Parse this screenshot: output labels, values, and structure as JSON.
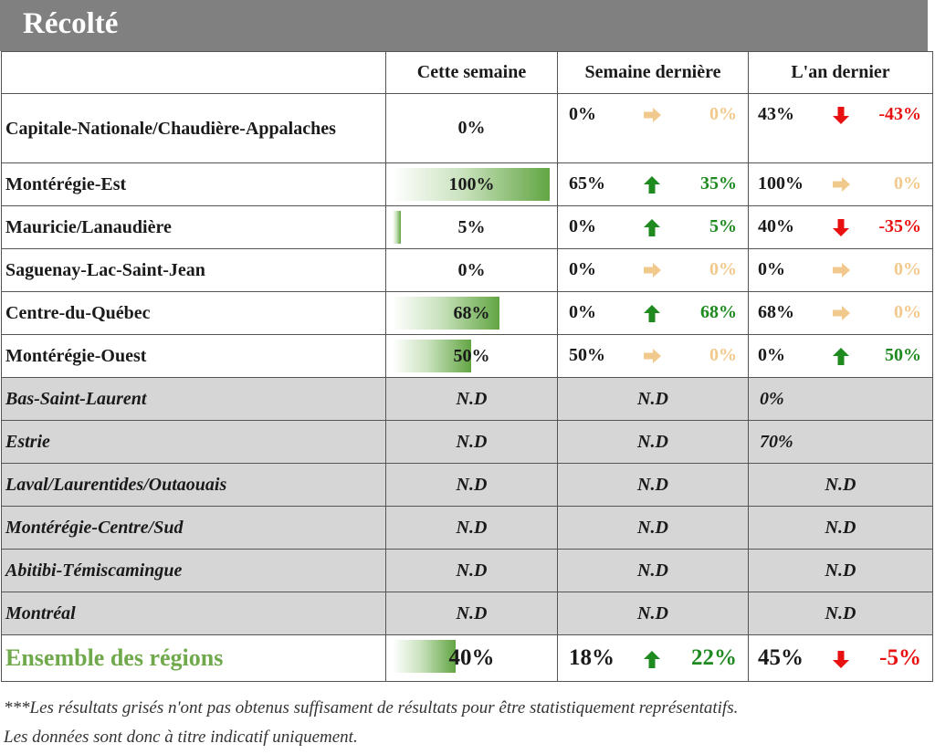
{
  "title": "Récolté",
  "headers": {
    "region": "",
    "this_week": "Cette semaine",
    "last_week": "Semaine dernière",
    "last_year": "L'an dernier"
  },
  "rows": [
    {
      "region": "Capitale-Nationale/Chaudière-Appalaches",
      "this_week": "0%",
      "this_week_value": 0,
      "last_week": "0%",
      "lw_dir": "right",
      "lw_delta": "0%",
      "last_year": "43%",
      "ly_dir": "down",
      "ly_delta": "-43%"
    },
    {
      "region": "Montérégie-Est",
      "this_week": "100%",
      "this_week_value": 100,
      "last_week": "65%",
      "lw_dir": "up",
      "lw_delta": "35%",
      "last_year": "100%",
      "ly_dir": "right",
      "ly_delta": "0%"
    },
    {
      "region": "Mauricie/Lanaudière",
      "this_week": "5%",
      "this_week_value": 5,
      "last_week": "0%",
      "lw_dir": "up",
      "lw_delta": "5%",
      "last_year": "40%",
      "ly_dir": "down",
      "ly_delta": "-35%"
    },
    {
      "region": "Saguenay-Lac-Saint-Jean",
      "this_week": "0%",
      "this_week_value": 0,
      "last_week": "0%",
      "lw_dir": "right",
      "lw_delta": "0%",
      "last_year": "0%",
      "ly_dir": "right",
      "ly_delta": "0%"
    },
    {
      "region": "Centre-du-Québec",
      "this_week": "68%",
      "this_week_value": 68,
      "last_week": "0%",
      "lw_dir": "up",
      "lw_delta": "68%",
      "last_year": "68%",
      "ly_dir": "right",
      "ly_delta": "0%"
    },
    {
      "region": "Montérégie-Ouest",
      "this_week": "50%",
      "this_week_value": 50,
      "last_week": "50%",
      "lw_dir": "right",
      "lw_delta": "0%",
      "last_year": "0%",
      "ly_dir": "up",
      "ly_delta": "50%"
    }
  ],
  "grey_rows": [
    {
      "region": "Bas-Saint-Laurent",
      "this_week": "N.D",
      "last_week": "N.D",
      "last_year": "0%"
    },
    {
      "region": "Estrie",
      "this_week": "N.D",
      "last_week": "N.D",
      "last_year": "70%"
    },
    {
      "region": "Laval/Laurentides/Outaouais",
      "this_week": "N.D",
      "last_week": "N.D",
      "last_year": "N.D"
    },
    {
      "region": "Montérégie-Centre/Sud",
      "this_week": "N.D",
      "last_week": "N.D",
      "last_year": "N.D"
    },
    {
      "region": "Abitibi-Témiscamingue",
      "this_week": "N.D",
      "last_week": "N.D",
      "last_year": "N.D"
    },
    {
      "region": "Montréal",
      "this_week": "N.D",
      "last_week": "N.D",
      "last_year": "N.D"
    }
  ],
  "total": {
    "region": "Ensemble des régions",
    "this_week": "40%",
    "this_week_value": 40,
    "last_week": "18%",
    "lw_dir": "up",
    "lw_delta": "22%",
    "last_year": "45%",
    "ly_dir": "down",
    "ly_delta": "-5%"
  },
  "footnote_line1": "***Les résultats grisés n'ont pas obtenus suffisament de résultats pour être statistiquement représentatifs.",
  "footnote_line2": "Les données sont donc à titre indicatif uniquement.",
  "colors": {
    "up": "#1f8a1f",
    "down": "#e81010",
    "flat": "#f2c98c",
    "bar": "#62a543",
    "grey_row": "#d6d6d6",
    "title_bar": "#808080",
    "total_label": "#70a94b"
  },
  "icons": {
    "up": "arrow-up-icon",
    "down": "arrow-down-icon",
    "right": "arrow-right-icon"
  }
}
